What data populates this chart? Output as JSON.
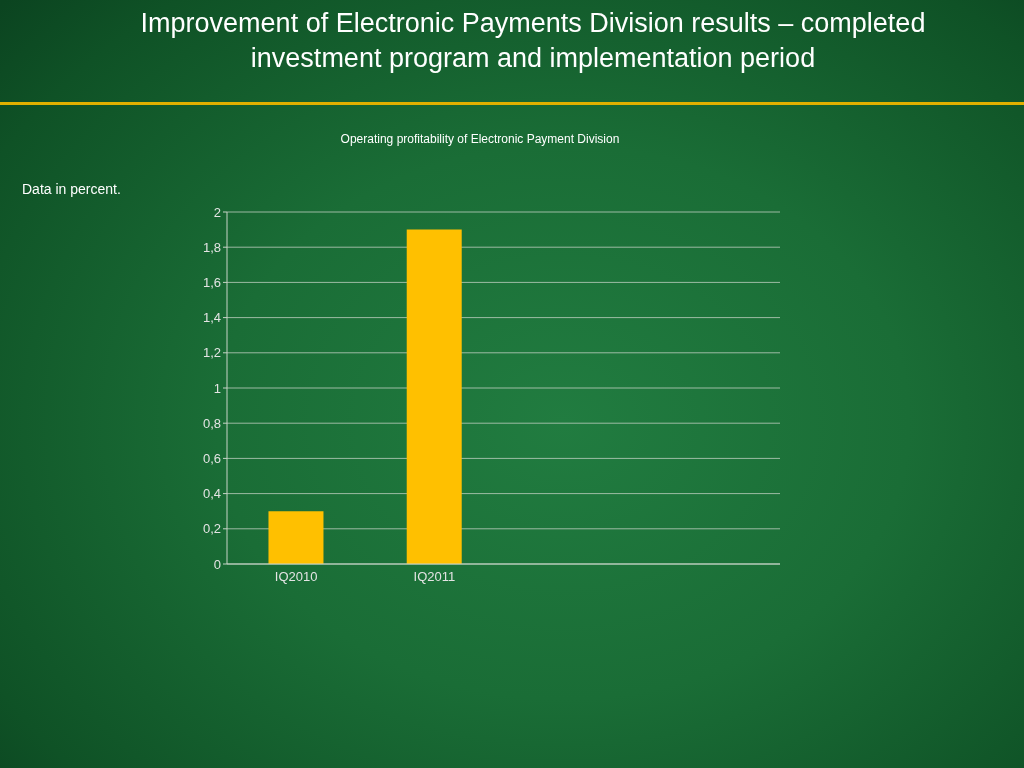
{
  "chart_data": {
    "type": "bar",
    "title": "Improvement of Electronic Payments Division results – completed investment program and implementation period",
    "subtitle": "Operating profitability of Electronic Payment Division",
    "annotations": [
      "Data in percent."
    ],
    "categories": [
      "IQ2010",
      "IQ2011",
      null,
      null
    ],
    "values": [
      0.3,
      1.9,
      null,
      null
    ],
    "color": "#ffc000",
    "ylim": [
      0,
      2
    ],
    "yticks": [
      0,
      {
        "value": 0.2,
        "label": "0,2"
      },
      {
        "value": 0.4,
        "label": "0,4"
      },
      {
        "value": 0.6,
        "label": "0,6"
      },
      {
        "value": 0.8,
        "label": "0,8"
      },
      1,
      {
        "value": 1.2,
        "label": "1,2"
      },
      {
        "value": 1.4,
        "label": "1,4"
      },
      {
        "value": 1.6,
        "label": "1,6"
      },
      {
        "value": 1.8,
        "label": "1,8"
      },
      2
    ],
    "grid": "y"
  }
}
